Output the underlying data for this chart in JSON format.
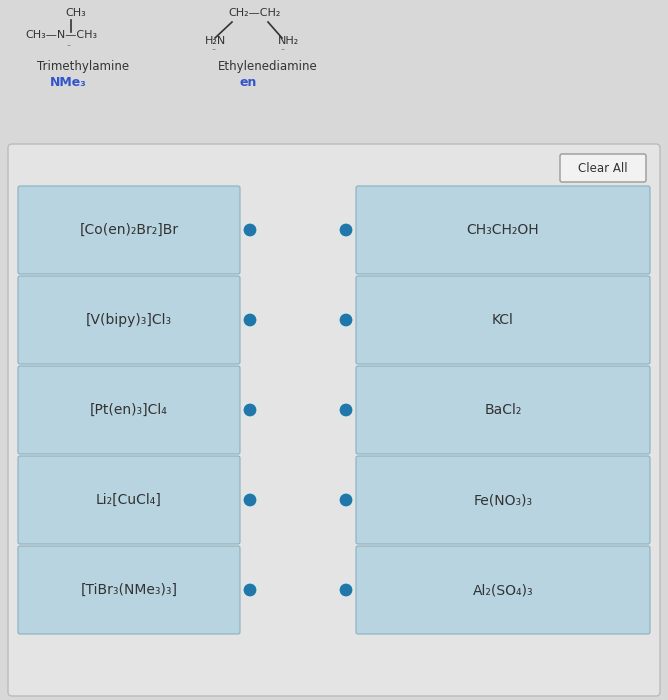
{
  "bg_color": "#d8d8d8",
  "main_box_bg": "#e8e8e8",
  "card_bg": "#b8d4e0",
  "card_border": "#9ab8c8",
  "card_text_color": "#333333",
  "dot_color": "#2277aa",
  "clear_all_border": "#aaaaaa",
  "clear_all_bg": "#f2f2f2",
  "clear_all_text": "Clear All",
  "left_cards": [
    "[Co(en)₂Br₂]Br",
    "[V(bipy)₃]Cl₃",
    "[Pt(en)₃]Cl₄",
    "Li₂[CuCl₄]",
    "[TiBr₃(NMe₃)₃]"
  ],
  "right_cards": [
    "CH₃CH₂OH",
    "KCl",
    "BaCl₂",
    "Fe(NO₃)₃",
    "Al₂(SO₄)₃"
  ],
  "trimethylamine_label": "Trimethylamine",
  "trimethylamine_abbr": "NMe₃",
  "ethylenediamine_label": "Ethylenediamine",
  "ethylenediamine_abbr": "en",
  "abbr_color": "#3355cc",
  "struct_color": "#333333",
  "figsize": [
    6.68,
    7.0
  ],
  "dpi": 100
}
